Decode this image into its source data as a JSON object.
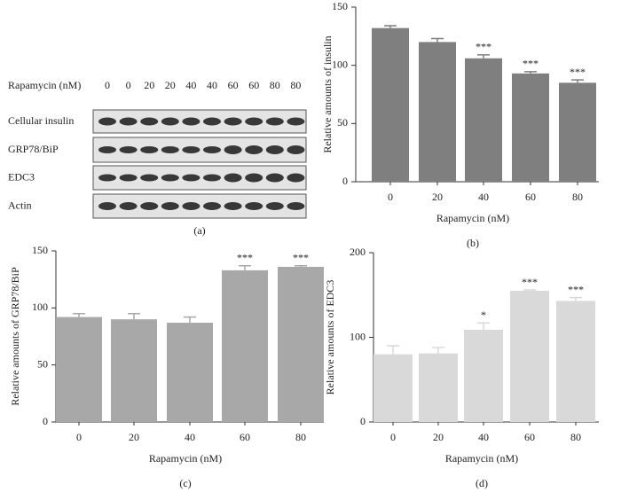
{
  "blot": {
    "treatment_label": "Rapamycin (nM)",
    "lanes": [
      "0",
      "0",
      "20",
      "20",
      "40",
      "40",
      "60",
      "60",
      "80",
      "80"
    ],
    "rows": [
      "Cellular insulin",
      "GRP78/BiP",
      "EDC3",
      "Actin"
    ],
    "panel_label": "(a)"
  },
  "chart_data": [
    {
      "type": "bar",
      "panel_label": "(b)",
      "x_label": "Rapamycin (nM)",
      "y_label": "Relative amounts of insulin",
      "categories": [
        "0",
        "20",
        "40",
        "60",
        "80"
      ],
      "values": [
        132,
        120,
        106,
        93,
        85
      ],
      "errors": [
        2,
        3,
        3,
        1.5,
        2.5
      ],
      "significance": [
        null,
        null,
        "***",
        "***",
        "***"
      ],
      "color": "#7f7f7f",
      "ylim": [
        0,
        150
      ],
      "yticks": [
        0,
        50,
        100,
        150
      ]
    },
    {
      "type": "bar",
      "panel_label": "(c)",
      "x_label": "Rapamycin (nM)",
      "y_label": "Relative amounts of GRP78/BiP",
      "categories": [
        "0",
        "20",
        "40",
        "60",
        "80"
      ],
      "values": [
        92,
        90,
        87,
        133,
        136
      ],
      "errors": [
        3,
        5,
        5,
        4,
        1
      ],
      "significance": [
        null,
        null,
        null,
        "***",
        "***"
      ],
      "color": "#a8a8a8",
      "ylim": [
        0,
        150
      ],
      "yticks": [
        0,
        50,
        100,
        150
      ]
    },
    {
      "type": "bar",
      "panel_label": "(d)",
      "x_label": "Rapamycin (nM)",
      "y_label": "Relative amounts of EDC3",
      "categories": [
        "0",
        "20",
        "40",
        "60",
        "80"
      ],
      "values": [
        80,
        81,
        109,
        155,
        143
      ],
      "errors": [
        10,
        7,
        8,
        1,
        4
      ],
      "significance": [
        null,
        null,
        "*",
        "***",
        "***"
      ],
      "color": "#d9d9d9",
      "ylim": [
        0,
        200
      ],
      "yticks": [
        0,
        100,
        200
      ]
    }
  ]
}
